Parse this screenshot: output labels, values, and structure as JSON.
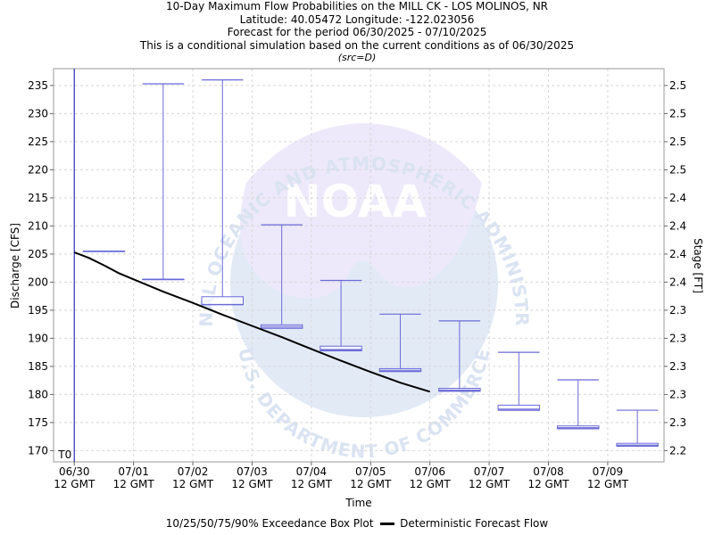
{
  "title_lines": [
    "10-Day Maximum Flow Probabilities on the MILL CK - LOS MOLINOS, NR",
    "Latitude: 40.05472 Longitude: -122.023056",
    "Forecast for the period 06/30/2025 - 07/10/2025",
    "This is a conditional simulation based on the current conditions as of 06/30/2025"
  ],
  "src_note": "(src=D)",
  "watermark": {
    "logo_text": "NOAA",
    "ring_text_top": "NATIONAL OCEANIC AND ATMOSPHERIC ADMINISTRATION",
    "ring_text_bottom": "U.S. DEPARTMENT OF COMMERCE"
  },
  "legend": {
    "box_label": "10/25/50/75/90% Exceedance Box Plot",
    "line_label": "Deterministic Forecast Flow"
  },
  "chart_data": {
    "type": "box",
    "xlabel": "Time",
    "ylabel": "Discharge [CFS]",
    "y2label": "Stage [FT]",
    "ylim": [
      168,
      238
    ],
    "yticks": [
      170,
      175,
      180,
      185,
      190,
      195,
      200,
      205,
      210,
      215,
      220,
      225,
      230,
      235
    ],
    "y2_tick_labels": [
      "2.2",
      "2.3",
      "2.3",
      "2.3",
      "2.3",
      "2.3",
      "2.4",
      "2.4",
      "2.4",
      "2.4",
      "2.5",
      "2.5",
      "2.5",
      "2.5"
    ],
    "x_start": "06/30 12 GMT",
    "x_range_days": [
      -0.35,
      9.95
    ],
    "x_ticks": [
      {
        "day": 0,
        "date": "06/30",
        "time": "12 GMT"
      },
      {
        "day": 1,
        "date": "07/01",
        "time": "12 GMT"
      },
      {
        "day": 2,
        "date": "07/02",
        "time": "12 GMT"
      },
      {
        "day": 3,
        "date": "07/03",
        "time": "12 GMT"
      },
      {
        "day": 4,
        "date": "07/04",
        "time": "12 GMT"
      },
      {
        "day": 5,
        "date": "07/05",
        "time": "12 GMT"
      },
      {
        "day": 6,
        "date": "07/06",
        "time": "12 GMT"
      },
      {
        "day": 7,
        "date": "07/07",
        "time": "12 GMT"
      },
      {
        "day": 8,
        "date": "07/08",
        "time": "12 GMT"
      },
      {
        "day": 9,
        "date": "07/09",
        "time": "12 GMT"
      }
    ],
    "t0": {
      "day": 0,
      "label": "T0"
    },
    "boxes": [
      {
        "day": 0.5,
        "p10": 205.5,
        "p25": 205.5,
        "p50": 205.5,
        "p75": 205.5,
        "p90": 205.5
      },
      {
        "day": 1.5,
        "p10": 200.5,
        "p25": 200.5,
        "p50": 200.5,
        "p75": 200.5,
        "p90": 235.3
      },
      {
        "day": 2.5,
        "p10": 196.0,
        "p25": 196.0,
        "p50": 196.0,
        "p75": 197.4,
        "p90": 236.0
      },
      {
        "day": 3.5,
        "p10": 191.8,
        "p25": 191.8,
        "p50": 192.1,
        "p75": 192.4,
        "p90": 210.2
      },
      {
        "day": 4.5,
        "p10": 187.8,
        "p25": 187.8,
        "p50": 188.0,
        "p75": 188.6,
        "p90": 200.3
      },
      {
        "day": 5.5,
        "p10": 184.1,
        "p25": 184.1,
        "p50": 184.3,
        "p75": 184.6,
        "p90": 194.3
      },
      {
        "day": 6.5,
        "p10": 180.6,
        "p25": 180.6,
        "p50": 180.8,
        "p75": 181.1,
        "p90": 193.1
      },
      {
        "day": 7.5,
        "p10": 177.2,
        "p25": 177.2,
        "p50": 177.4,
        "p75": 178.1,
        "p90": 187.5
      },
      {
        "day": 8.5,
        "p10": 173.9,
        "p25": 173.9,
        "p50": 174.1,
        "p75": 174.4,
        "p90": 182.6
      },
      {
        "day": 9.5,
        "p10": 170.8,
        "p25": 170.8,
        "p50": 171.0,
        "p75": 171.3,
        "p90": 177.2
      }
    ],
    "deterministic": {
      "days": [
        0,
        0.25,
        0.5,
        0.75,
        1.0,
        1.5,
        2.0,
        2.5,
        3.0,
        3.5,
        4.0,
        4.5,
        5.0,
        5.5,
        6.0
      ],
      "values": [
        205.3,
        204.3,
        203.0,
        201.6,
        200.5,
        198.3,
        196.3,
        194.2,
        192.2,
        190.2,
        188.1,
        186.0,
        184.0,
        182.1,
        180.5
      ]
    },
    "colors": {
      "box": "#6a6ad8",
      "line": "#000000",
      "t0_line": "#3030c0",
      "grid": "#d8d8d8",
      "frame": "#9a9a9a"
    }
  }
}
